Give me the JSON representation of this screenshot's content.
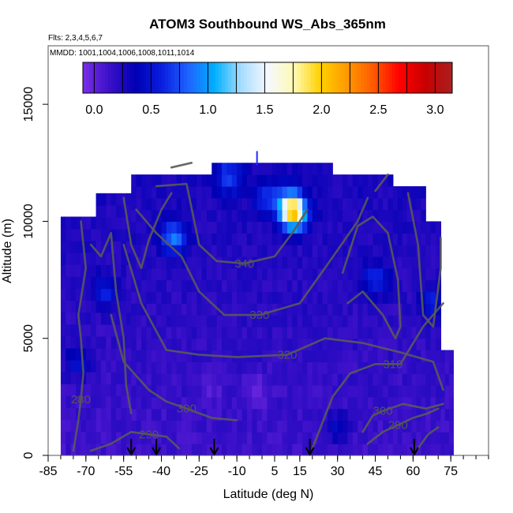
{
  "chart_data": {
    "type": "heatmap",
    "title": "ATOM3 Southbound WS_Abs_365nm",
    "flights_label": "Flts: 2,3,4,5,6,7",
    "dates_label": "MMDD: 1001,1004,1006,1008,1011,1014",
    "xlabel": "Latitude (deg N)",
    "ylabel": "Altitude (m)",
    "xlim": [
      -85,
      90
    ],
    "ylim": [
      0,
      17500
    ],
    "x_ticks": [
      -85,
      -70,
      -55,
      -40,
      -25,
      -10,
      5,
      15,
      30,
      45,
      60,
      75
    ],
    "x_tick_labels": [
      "-85",
      "-70",
      "-55",
      "-40",
      "-25",
      "-10",
      "5",
      "15",
      "30",
      "45",
      "60",
      "75"
    ],
    "y_ticks": [
      0,
      5000,
      10000,
      15000
    ],
    "y_tick_labels": [
      "0",
      "5000",
      "10000",
      "15000"
    ],
    "colorbar": {
      "range": [
        -0.1,
        3.15
      ],
      "ticks": [
        0,
        0.5,
        1,
        1.5,
        2,
        2.5,
        3
      ],
      "tick_labels": [
        "0.0",
        "0.5",
        "1.0",
        "1.5",
        "2.0",
        "2.5",
        "3.0"
      ],
      "colors": [
        "#7a2ee6",
        "#3a10c8",
        "#0000b4",
        "#0a1ee0",
        "#1e64ff",
        "#00b0ff",
        "#a8dcff",
        "#f4f8ff",
        "#fffab4",
        "#ffd000",
        "#ff9a00",
        "#ff5a00",
        "#ff0000",
        "#c80000",
        "#a82020"
      ]
    },
    "field": {
      "base_value": 0.12,
      "bands": [
        {
          "lat_min": -80,
          "lat_max": -66,
          "alt_min": 0,
          "alt_max": 10200
        },
        {
          "lat_min": -66,
          "lat_max": -52,
          "alt_min": 0,
          "alt_max": 11200
        },
        {
          "lat_min": -52,
          "lat_max": -20,
          "alt_min": 0,
          "alt_max": 12000
        },
        {
          "lat_min": -20,
          "lat_max": 28,
          "alt_min": 0,
          "alt_max": 12500
        },
        {
          "lat_min": 28,
          "lat_max": 52,
          "alt_min": 0,
          "alt_max": 12000
        },
        {
          "lat_min": 52,
          "lat_max": 65,
          "alt_min": 0,
          "alt_max": 11500
        },
        {
          "lat_min": 65,
          "lat_max": 71,
          "alt_min": 0,
          "alt_max": 10000
        },
        {
          "lat_min": 71,
          "lat_max": 76,
          "alt_min": 0,
          "alt_max": 4500
        }
      ],
      "features": [
        {
          "lat": 13,
          "alt": 10300,
          "value": 1.4
        },
        {
          "lat": 11,
          "alt": 10700,
          "value": 1.0
        },
        {
          "lat": -35,
          "alt": 9300,
          "value": 0.8
        },
        {
          "lat": -13,
          "alt": 11900,
          "value": 0.6
        },
        {
          "lat": 2,
          "alt": 11000,
          "value": 0.5
        },
        {
          "lat": -62,
          "alt": 7000,
          "value": 0.5
        },
        {
          "lat": 45,
          "alt": 7500,
          "value": 0.55
        },
        {
          "lat": 67,
          "alt": 6500,
          "value": 0.5
        },
        {
          "lat": -73,
          "alt": 4000,
          "value": 0.45
        },
        {
          "lat": -20,
          "alt": 3000,
          "value": 0.0
        },
        {
          "lat": -2,
          "alt": 2800,
          "value": -0.05
        },
        {
          "lat": 30,
          "alt": 1200,
          "value": 0.4
        }
      ]
    },
    "contours": [
      {
        "label": "280",
        "label_lat": -72,
        "label_alt": 2400,
        "points": [
          [
            -75,
            200
          ],
          [
            -73,
            1500
          ],
          [
            -72,
            2400
          ],
          [
            -71,
            3500
          ],
          [
            -72,
            5000
          ],
          [
            -73,
            6000
          ],
          [
            -70,
            8000
          ],
          [
            -72,
            10000
          ]
        ]
      },
      {
        "label": "290",
        "label_lat": -45,
        "label_alt": 900,
        "points": [
          [
            -68,
            200
          ],
          [
            -60,
            500
          ],
          [
            -52,
            1000
          ],
          [
            -45,
            900
          ],
          [
            -38,
            800
          ],
          [
            -33,
            300
          ]
        ]
      },
      {
        "label": "300",
        "label_lat": -30,
        "label_alt": 2000,
        "points": [
          [
            -60,
            6000
          ],
          [
            -55,
            4000
          ],
          [
            -45,
            2800
          ],
          [
            -38,
            2300
          ],
          [
            -30,
            2000
          ],
          [
            -20,
            1600
          ],
          [
            -10,
            1500
          ]
        ]
      },
      {
        "label": "320",
        "label_lat": 10,
        "label_alt": 4300,
        "points": [
          [
            -55,
            9000
          ],
          [
            -48,
            6500
          ],
          [
            -38,
            4500
          ],
          [
            -25,
            4300
          ],
          [
            -10,
            4200
          ],
          [
            10,
            4300
          ],
          [
            25,
            5000
          ],
          [
            40,
            4800
          ],
          [
            55,
            4400
          ],
          [
            68,
            4000
          ],
          [
            72,
            2800
          ]
        ]
      },
      {
        "label": "330",
        "label_lat": -1,
        "label_alt": 6000,
        "points": [
          [
            -50,
            10500
          ],
          [
            -42,
            9500
          ],
          [
            -32,
            8500
          ],
          [
            -25,
            7000
          ],
          [
            -15,
            6000
          ],
          [
            -1,
            6000
          ],
          [
            15,
            6500
          ],
          [
            25,
            8000
          ],
          [
            38,
            10000
          ],
          [
            42,
            11000
          ]
        ]
      },
      {
        "label": "340",
        "label_lat": -7,
        "label_alt": 8200,
        "points": [
          [
            -42,
            11500
          ],
          [
            -30,
            11600
          ],
          [
            -25,
            9000
          ],
          [
            -18,
            8300
          ],
          [
            -7,
            8200
          ],
          [
            5,
            8500
          ],
          [
            12,
            9500
          ],
          [
            18,
            10500
          ]
        ]
      },
      {
        "label": "310",
        "label_lat": 52,
        "label_alt": 3900,
        "points": [
          [
            20,
            300
          ],
          [
            28,
            2500
          ],
          [
            35,
            3500
          ],
          [
            45,
            3900
          ],
          [
            55,
            3900
          ],
          [
            64,
            5500
          ],
          [
            72,
            6500
          ]
        ]
      },
      {
        "label": "300",
        "label_lat": 48,
        "label_alt": 1900,
        "points": [
          [
            40,
            1000
          ],
          [
            44,
            1700
          ],
          [
            48,
            1900
          ],
          [
            56,
            2200
          ],
          [
            65,
            2000
          ],
          [
            72,
            2200
          ]
        ]
      },
      {
        "label": "290",
        "label_lat": 54,
        "label_alt": 1300,
        "points": [
          [
            42,
            500
          ],
          [
            48,
            1000
          ],
          [
            54,
            1300
          ],
          [
            60,
            1600
          ],
          [
            66,
            1800
          ],
          [
            70,
            2000
          ]
        ]
      },
      {
        "label": "",
        "label_lat": 0,
        "label_alt": 0,
        "points": [
          [
            -68,
            9000
          ],
          [
            -64,
            8500
          ],
          [
            -60,
            9500
          ],
          [
            -58,
            7000
          ],
          [
            -55,
            5000
          ],
          [
            -54,
            3000
          ],
          [
            -52,
            1800
          ]
        ]
      },
      {
        "label": "",
        "label_lat": 0,
        "label_alt": 0,
        "points": [
          [
            -55,
            11000
          ],
          [
            -52,
            9000
          ],
          [
            -48,
            8000
          ],
          [
            -45,
            9200
          ],
          [
            -40,
            10500
          ],
          [
            -36,
            11200
          ]
        ]
      },
      {
        "label": "",
        "label_lat": 0,
        "label_alt": 0,
        "points": [
          [
            32,
            7800
          ],
          [
            38,
            9800
          ],
          [
            44,
            10200
          ],
          [
            50,
            9500
          ],
          [
            54,
            7500
          ],
          [
            55,
            5500
          ],
          [
            53,
            5000
          ],
          [
            48,
            6000
          ],
          [
            40,
            7000
          ],
          [
            34,
            6500
          ]
        ]
      },
      {
        "label": "",
        "label_lat": 0,
        "label_alt": 0,
        "points": [
          [
            58,
            11200
          ],
          [
            62,
            9000
          ],
          [
            64,
            6000
          ],
          [
            68,
            5500
          ],
          [
            71,
            8000
          ],
          [
            71,
            9300
          ]
        ]
      },
      {
        "label": "",
        "label_lat": 0,
        "label_alt": 0,
        "points": [
          [
            62,
            300
          ],
          [
            66,
            900
          ],
          [
            70,
            1200
          ]
        ]
      },
      {
        "label": "",
        "label_lat": 0,
        "label_alt": 0,
        "points": [
          [
            -36,
            12300
          ],
          [
            -28,
            12500
          ]
        ]
      },
      {
        "label": "",
        "label_lat": 0,
        "label_alt": 0,
        "points": [
          [
            45,
            11300
          ],
          [
            50,
            12000
          ]
        ]
      }
    ],
    "arrows_lat": [
      -52,
      -42,
      -19,
      19,
      60.5
    ],
    "tropopause_tick": {
      "lat": -2,
      "alt": 13000
    }
  }
}
